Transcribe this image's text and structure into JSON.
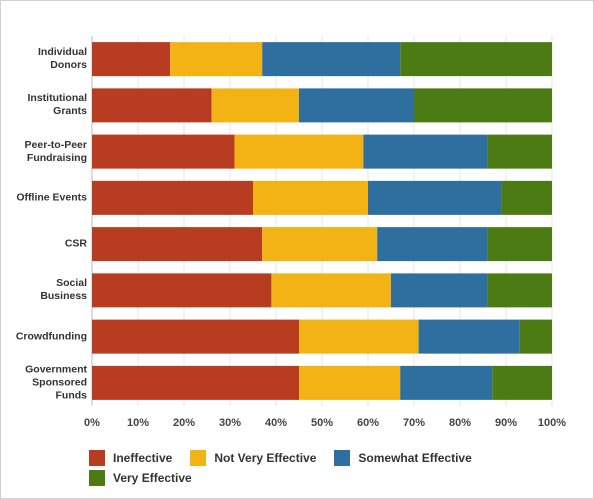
{
  "chart_data": {
    "type": "stacked-bar-horizontal",
    "categories": [
      "Individual Donors",
      "Institutional Grants",
      "Peer-to-Peer Fundraising",
      "Offline Events",
      "CSR",
      "Social Business",
      "Crowdfunding",
      "Government Sponsored Funds"
    ],
    "series": [
      {
        "name": "Ineffective",
        "color": "#b83c1f",
        "values": [
          17,
          26,
          31,
          35,
          37,
          39,
          45,
          45
        ]
      },
      {
        "name": "Not Very Effective",
        "color": "#f4b314",
        "values": [
          20,
          19,
          28,
          25,
          25,
          26,
          26,
          22
        ]
      },
      {
        "name": "Somewhat Effective",
        "color": "#2f6f9f",
        "values": [
          30,
          25,
          27,
          29,
          24,
          21,
          22,
          20
        ]
      },
      {
        "name": "Very Effective",
        "color": "#4c7a13",
        "values": [
          33,
          30,
          14,
          11,
          14,
          14,
          7,
          13
        ]
      }
    ],
    "xlim": [
      0,
      100
    ],
    "xticks": [
      {
        "value": 0,
        "label": "0%"
      },
      {
        "value": 10,
        "label": "10%"
      },
      {
        "value": 20,
        "label": "20%"
      },
      {
        "value": 30,
        "label": "30%"
      },
      {
        "value": 40,
        "label": "40%"
      },
      {
        "value": 50,
        "label": "50%"
      },
      {
        "value": 60,
        "label": "60%"
      },
      {
        "value": 70,
        "label": "70%"
      },
      {
        "value": 80,
        "label": "80%"
      },
      {
        "value": 90,
        "label": "90%"
      },
      {
        "value": 100,
        "label": "100%"
      }
    ],
    "grid": true
  }
}
